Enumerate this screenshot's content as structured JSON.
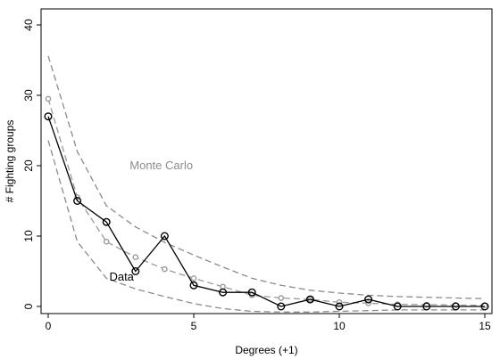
{
  "chart_data": {
    "type": "line",
    "title": "",
    "xlabel": "Degrees (+1)",
    "ylabel": "# Fighting groups",
    "xlim": [
      0,
      15
    ],
    "ylim": [
      0,
      40
    ],
    "xticks": [
      0,
      5,
      10,
      15
    ],
    "yticks": [
      0,
      10,
      20,
      30,
      40
    ],
    "grid": false,
    "colors": {
      "data": "#000000",
      "monte_carlo": "#9a9a9a",
      "bands": "#8c8c8c",
      "annot_monte_carlo": "#8c8c8c"
    },
    "annotations": [
      {
        "text": "Monte Carlo",
        "x": 2.8,
        "y": 19.5
      },
      {
        "text": "Data",
        "x": 2.1,
        "y": 3.7
      }
    ],
    "series": [
      {
        "style": "solid-black-hollow-circles",
        "x": [
          0,
          1,
          2,
          3,
          4,
          5,
          6,
          7,
          8,
          9,
          10,
          11,
          12,
          13,
          14,
          15
        ],
        "y": [
          27,
          15,
          12,
          5,
          10,
          3,
          2,
          2,
          0,
          1,
          0,
          1,
          0,
          0,
          0,
          0
        ]
      },
      {
        "style": "dashed-gray-small-dots",
        "x": [
          0,
          1,
          2,
          3,
          4,
          5,
          6,
          7,
          8,
          9,
          10,
          11,
          12,
          13,
          14,
          15
        ],
        "y": [
          29.5,
          15.5,
          9.2,
          7,
          5.3,
          4,
          2.8,
          1.6,
          1.2,
          1,
          0.6,
          0.45,
          0.3,
          0.25,
          0.2,
          0.15
        ]
      },
      {
        "style": "dashed-gray-upper-band",
        "x": [
          0,
          1,
          2,
          3,
          4,
          5,
          6,
          7,
          8,
          9,
          10,
          11,
          12,
          13,
          14,
          15
        ],
        "y": [
          35.6,
          22,
          14.3,
          11.3,
          9.1,
          7.3,
          5.6,
          4,
          3,
          2.3,
          1.9,
          1.6,
          1.4,
          1.3,
          1.2,
          1.1
        ]
      },
      {
        "style": "dashed-gray-lower-band",
        "x": [
          0,
          1,
          2,
          3,
          4,
          5,
          6,
          7,
          8,
          9,
          10,
          11,
          12,
          13,
          14,
          15
        ],
        "y": [
          23.6,
          9.2,
          4,
          2.5,
          1.4,
          0.4,
          -0.3,
          -0.7,
          -0.8,
          -0.8,
          -0.7,
          -0.6,
          -0.5,
          -0.5,
          -0.5,
          -0.5
        ]
      }
    ]
  }
}
